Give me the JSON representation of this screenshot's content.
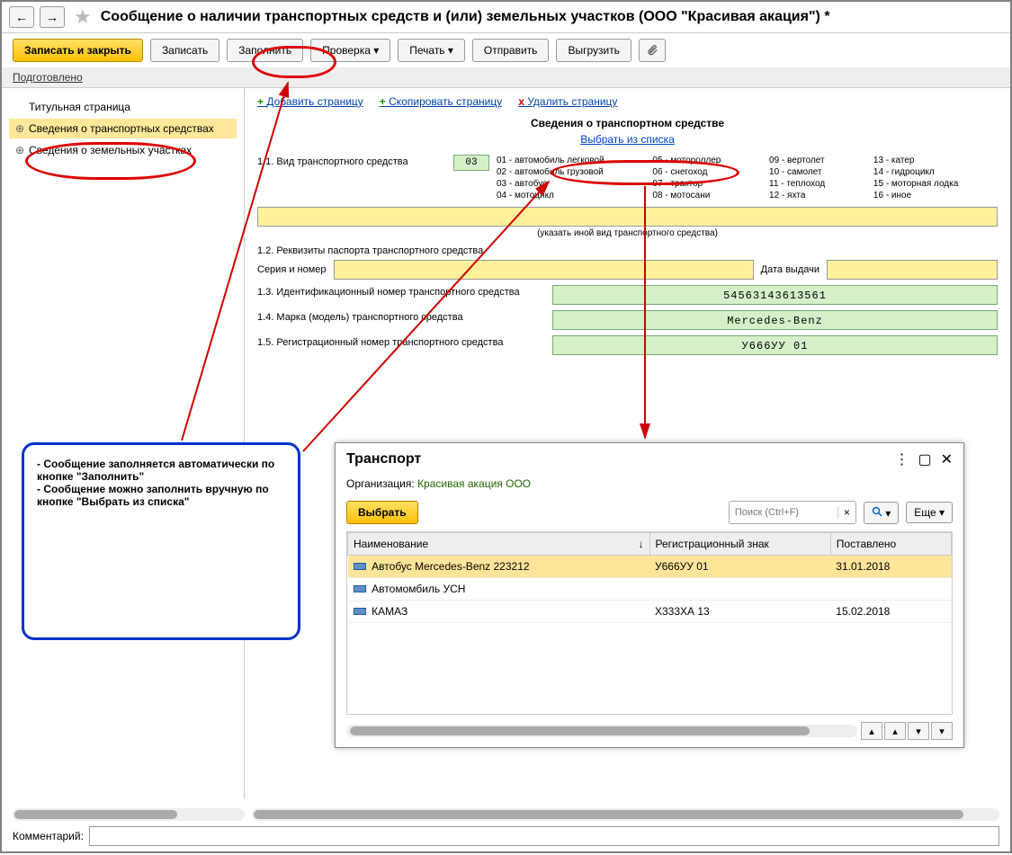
{
  "page_title": "Сообщение о наличии транспортных средств и (или) земельных участков (ООО \"Красивая акация\") *",
  "toolbar": {
    "save_close": "Записать и закрыть",
    "save": "Записать",
    "fill": "Заполнить",
    "check": "Проверка",
    "print": "Печать",
    "send": "Отправить",
    "export": "Выгрузить"
  },
  "status": "Подготовлено",
  "sidebar": {
    "items": [
      {
        "label": "Титульная страница",
        "selected": false,
        "expandable": false
      },
      {
        "label": "Сведения о транспортных средствах",
        "selected": true,
        "expandable": true
      },
      {
        "label": "Сведения о земельных участках",
        "selected": false,
        "expandable": true
      }
    ]
  },
  "page_actions": {
    "add": "Добавить страницу",
    "copy": "Скопировать страницу",
    "del": "Удалить страницу"
  },
  "form": {
    "section_title": "Сведения о транспортном средстве",
    "select_link": "Выбрать из списка",
    "f11_label": "1.1. Вид транспортного средства",
    "f11_code": "03",
    "vehicle_types": [
      "01 - автомобиль легковой",
      "05 - мотороллер",
      "09 - вертолет",
      "13 - катер",
      "02 - автомобиль грузовой",
      "06 - снегоход",
      "10 - самолет",
      "14 - гидроцикл",
      "03 - автобус",
      "07 - трактор",
      "11 - теплоход",
      "15 - моторная лодка",
      "04 - мотоцикл",
      "08 - мотосани",
      "12 - яхта",
      "16 - иное"
    ],
    "other_hint": "(указать иной вид транспортного средства)",
    "f12_label": "1.2. Реквизиты паспорта транспортного средства",
    "serial_label": "Серия и номер",
    "date_label": "Дата выдачи",
    "f13_label": "1.3. Идентификационный номер транспортного средства",
    "f13_value": "54563143613561",
    "f14_label": "1.4. Марка (модель) транспортного средства",
    "f14_value": "Mercedes-Benz",
    "f15_label": "1.5. Регистрационный номер транспортного средства",
    "f15_value": "У666УУ 01"
  },
  "callout": {
    "text": "- Сообщение заполняется автоматически по кнопке \"Заполнить\"\n- Сообщение можно заполнить вручную по кнопке \"Выбрать из списка\""
  },
  "popup": {
    "title": "Транспорт",
    "org_label": "Организация:",
    "org_value": "Красивая акация ООО",
    "select_btn": "Выбрать",
    "search_placeholder": "Поиск (Ctrl+F)",
    "more_btn": "Еще",
    "columns": [
      "Наименование",
      "Регистрационный знак",
      "Поставлено"
    ],
    "rows": [
      {
        "name": "Автобус Mercedes-Benz 223212",
        "reg": "У666УУ 01",
        "date": "31.01.2018",
        "sel": true
      },
      {
        "name": "Автомомбиль УСН",
        "reg": "",
        "date": "",
        "sel": false
      },
      {
        "name": "КАМАЗ",
        "reg": "Х333ХА 13",
        "date": "15.02.2018",
        "sel": false
      }
    ]
  },
  "comment_label": "Комментарий:",
  "colors": {
    "accent_yellow": "#ffc107",
    "field_yellow": "#fff29a",
    "field_green": "#d5f0c8",
    "highlight_red": "#d00000",
    "callout_blue": "#0033cc",
    "sel_row": "#ffe59a"
  }
}
